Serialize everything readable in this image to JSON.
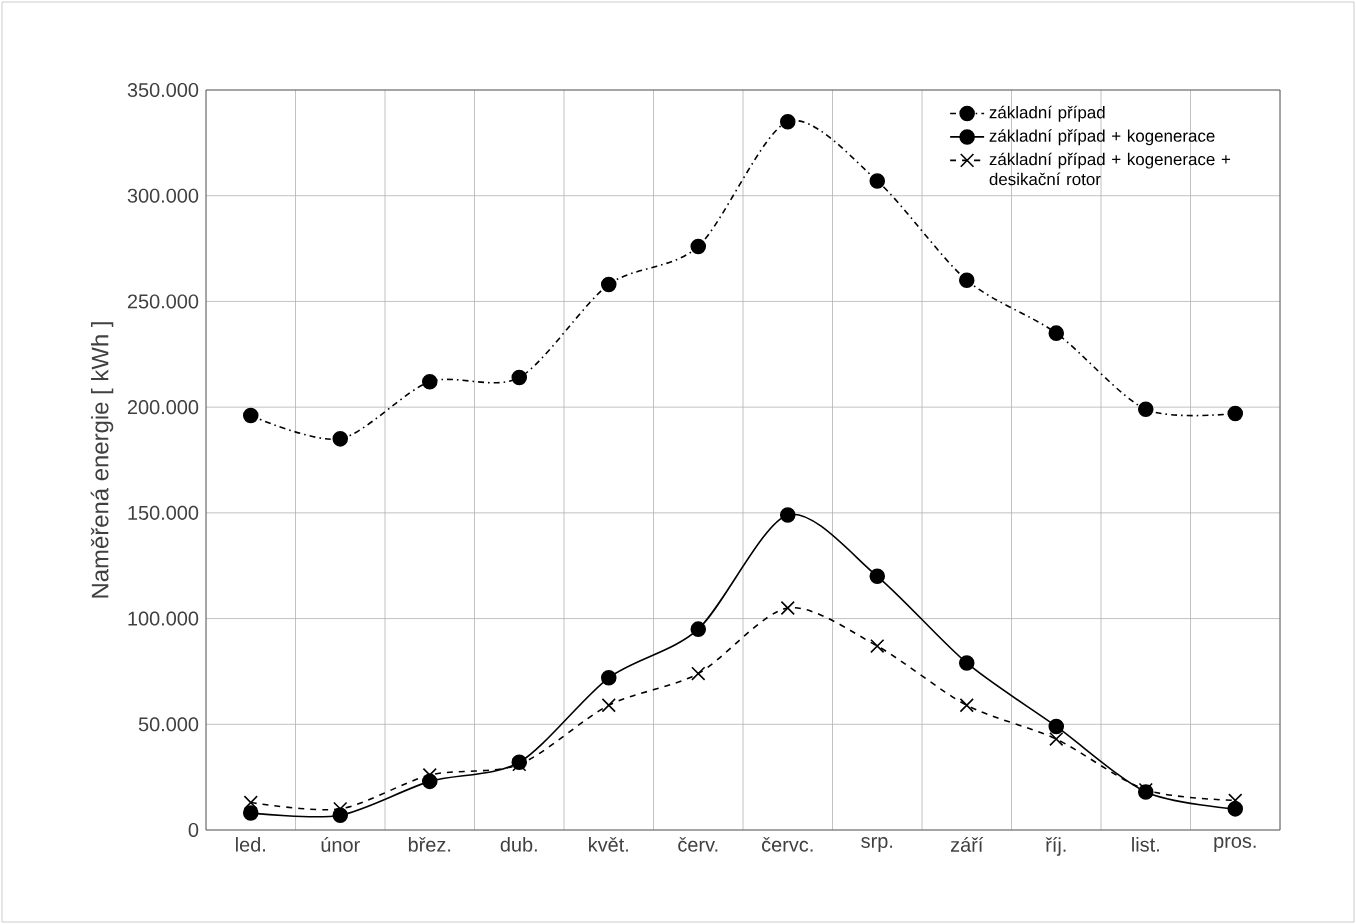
{
  "chart_data": {
    "type": "line",
    "ylabel": "Naměřená energie [ kWh ]",
    "categories": [
      "led.",
      "únor",
      "břez.",
      "dub.",
      "květ.",
      "červ.",
      "červc.",
      "srp.",
      "září",
      "říj.",
      "list.",
      "pros."
    ],
    "series": [
      {
        "name": "základní případ",
        "color": "#000000",
        "marker": "circle",
        "line_style": "dashdot",
        "values": [
          196000,
          185000,
          212000,
          214000,
          258000,
          276000,
          335000,
          307000,
          260000,
          235000,
          199000,
          197000
        ]
      },
      {
        "name": "základní případ + kogenerace",
        "color": "#000000",
        "marker": "circle",
        "line_style": "solid",
        "values": [
          8000,
          7000,
          23000,
          32000,
          72000,
          95000,
          149000,
          120000,
          79000,
          49000,
          18000,
          10000
        ]
      },
      {
        "name": "základní případ + kogenerace + desikační rotor",
        "color": "#000000",
        "marker": "cross",
        "line_style": "dashed",
        "values": [
          13000,
          10000,
          26000,
          31000,
          59000,
          74000,
          105000,
          87000,
          59000,
          43000,
          19000,
          14000
        ]
      }
    ],
    "ylim": [
      0,
      350000
    ],
    "yticks": [
      0,
      {
        "value": 50000,
        "label": "50.000"
      },
      {
        "value": 100000,
        "label": "100.000"
      },
      {
        "value": 150000,
        "label": "150.000"
      },
      {
        "value": 200000,
        "label": "200.000"
      },
      {
        "value": 250000,
        "label": "250.000"
      },
      {
        "value": 300000,
        "label": "300.000"
      },
      {
        "value": 350000,
        "label": "350.000"
      }
    ],
    "grid": true,
    "legend": "top right"
  }
}
